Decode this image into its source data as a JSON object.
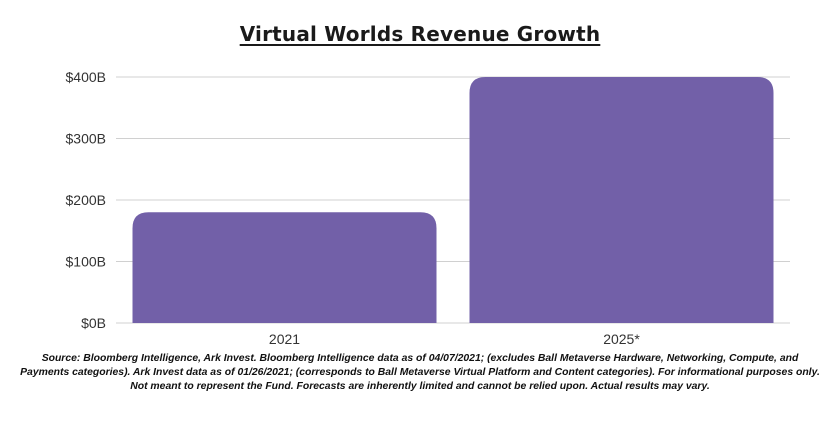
{
  "chart_data": {
    "type": "bar",
    "title": "Virtual Worlds Revenue Growth",
    "categories": [
      "2021",
      "2025*"
    ],
    "values": [
      180,
      400
    ],
    "y_ticks": [
      "$0B",
      "$100B",
      "$200B",
      "$300B",
      "$400B"
    ],
    "ylim": [
      0,
      400
    ],
    "grid": true,
    "xlabel": "",
    "ylabel": "",
    "bar_color": "#7260a8",
    "grid_color": "#d0d0d0"
  },
  "footnote": "Source: Bloomberg Intelligence, Ark Invest. Bloomberg Intelligence data as of 04/07/2021; (excludes Ball Metaverse Hardware, Networking, Compute, and Payments categories). Ark Invest data as of  01/26/2021; (corresponds to Ball Metaverse Virtual Platform and Content categories). For informational purposes only. Not meant to represent the Fund. Forecasts are inherently limited and cannot be relied upon. Actual results may vary."
}
